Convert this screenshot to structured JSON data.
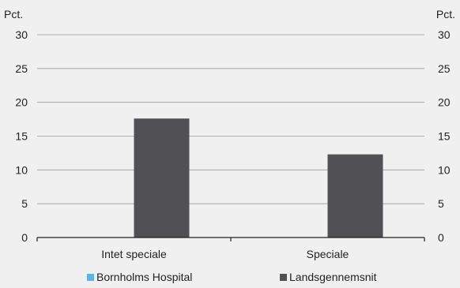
{
  "chart_data": {
    "type": "bar",
    "y_unit_left": "Pct.",
    "y_unit_right": "Pct.",
    "categories": [
      "Intet speciale",
      "Speciale"
    ],
    "series": [
      {
        "name": "Bornholms Hospital",
        "values": [
          0,
          0
        ],
        "color": "#5ab4e5"
      },
      {
        "name": "Landsgennemsnit",
        "values": [
          17.6,
          12.3
        ],
        "color": "#505055"
      }
    ],
    "ylim": [
      0,
      30
    ],
    "yticks": [
      "0",
      "5",
      "10",
      "15",
      "20",
      "25",
      "30"
    ],
    "grid": true,
    "legend_position": "bottom"
  }
}
